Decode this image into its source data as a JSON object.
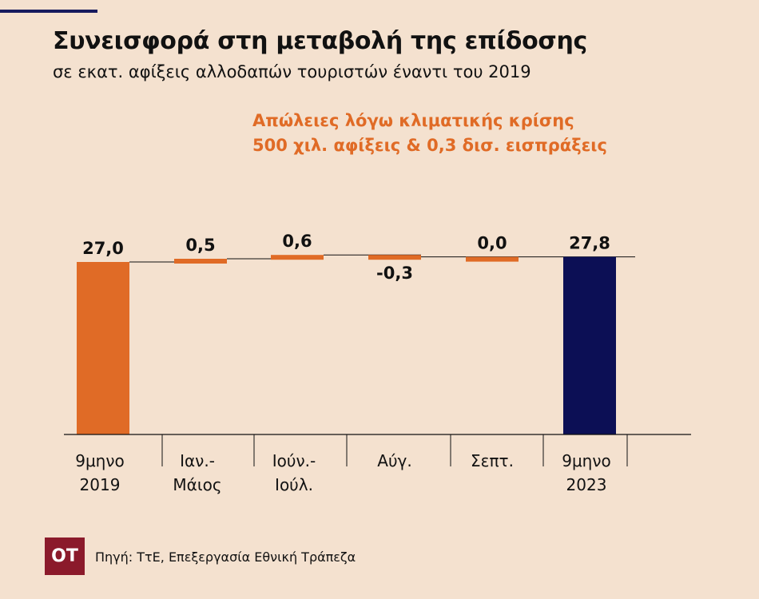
{
  "title": "Συνεισφορά στη μεταβολή της επίδοσης",
  "subtitle": "σε εκατ. αφίξεις αλλοδαπών τουριστών έναντι του 2019",
  "annotation": {
    "line1": "Απώλειες λόγω κλιματικής κρίσης",
    "line2": "500 χιλ. αφίξεις & 0,3 δισ. εισπράξεις"
  },
  "source": "Πηγή: ΤτΕ, Επεξεργασία Εθνική Τράπεζα",
  "logo_text": "ΟΤ",
  "colors": {
    "background": "#f4e1cf",
    "orange": "#e06b26",
    "navy": "#0c0f55",
    "accent_rule": "#171b5e",
    "logo_bg": "#8b1a2b"
  },
  "chart_data": {
    "type": "waterfall",
    "categories": [
      [
        "9μηνο",
        "2019"
      ],
      [
        "Ιαν.-",
        "Μάιος"
      ],
      [
        "Ιούν.-",
        "Ιούλ."
      ],
      [
        "Αύγ."
      ],
      [
        "Σεπτ."
      ],
      [
        "9μηνο",
        "2023"
      ]
    ],
    "values": [
      27.0,
      0.5,
      0.6,
      -0.3,
      0.0,
      27.8
    ],
    "labels": [
      "27,0",
      "0,5",
      "0,6",
      "-0,3",
      "0,0",
      "27,8"
    ],
    "kinds": [
      "total",
      "delta",
      "delta",
      "delta",
      "delta",
      "total"
    ],
    "ylim": [
      0,
      30
    ],
    "grid": false
  }
}
